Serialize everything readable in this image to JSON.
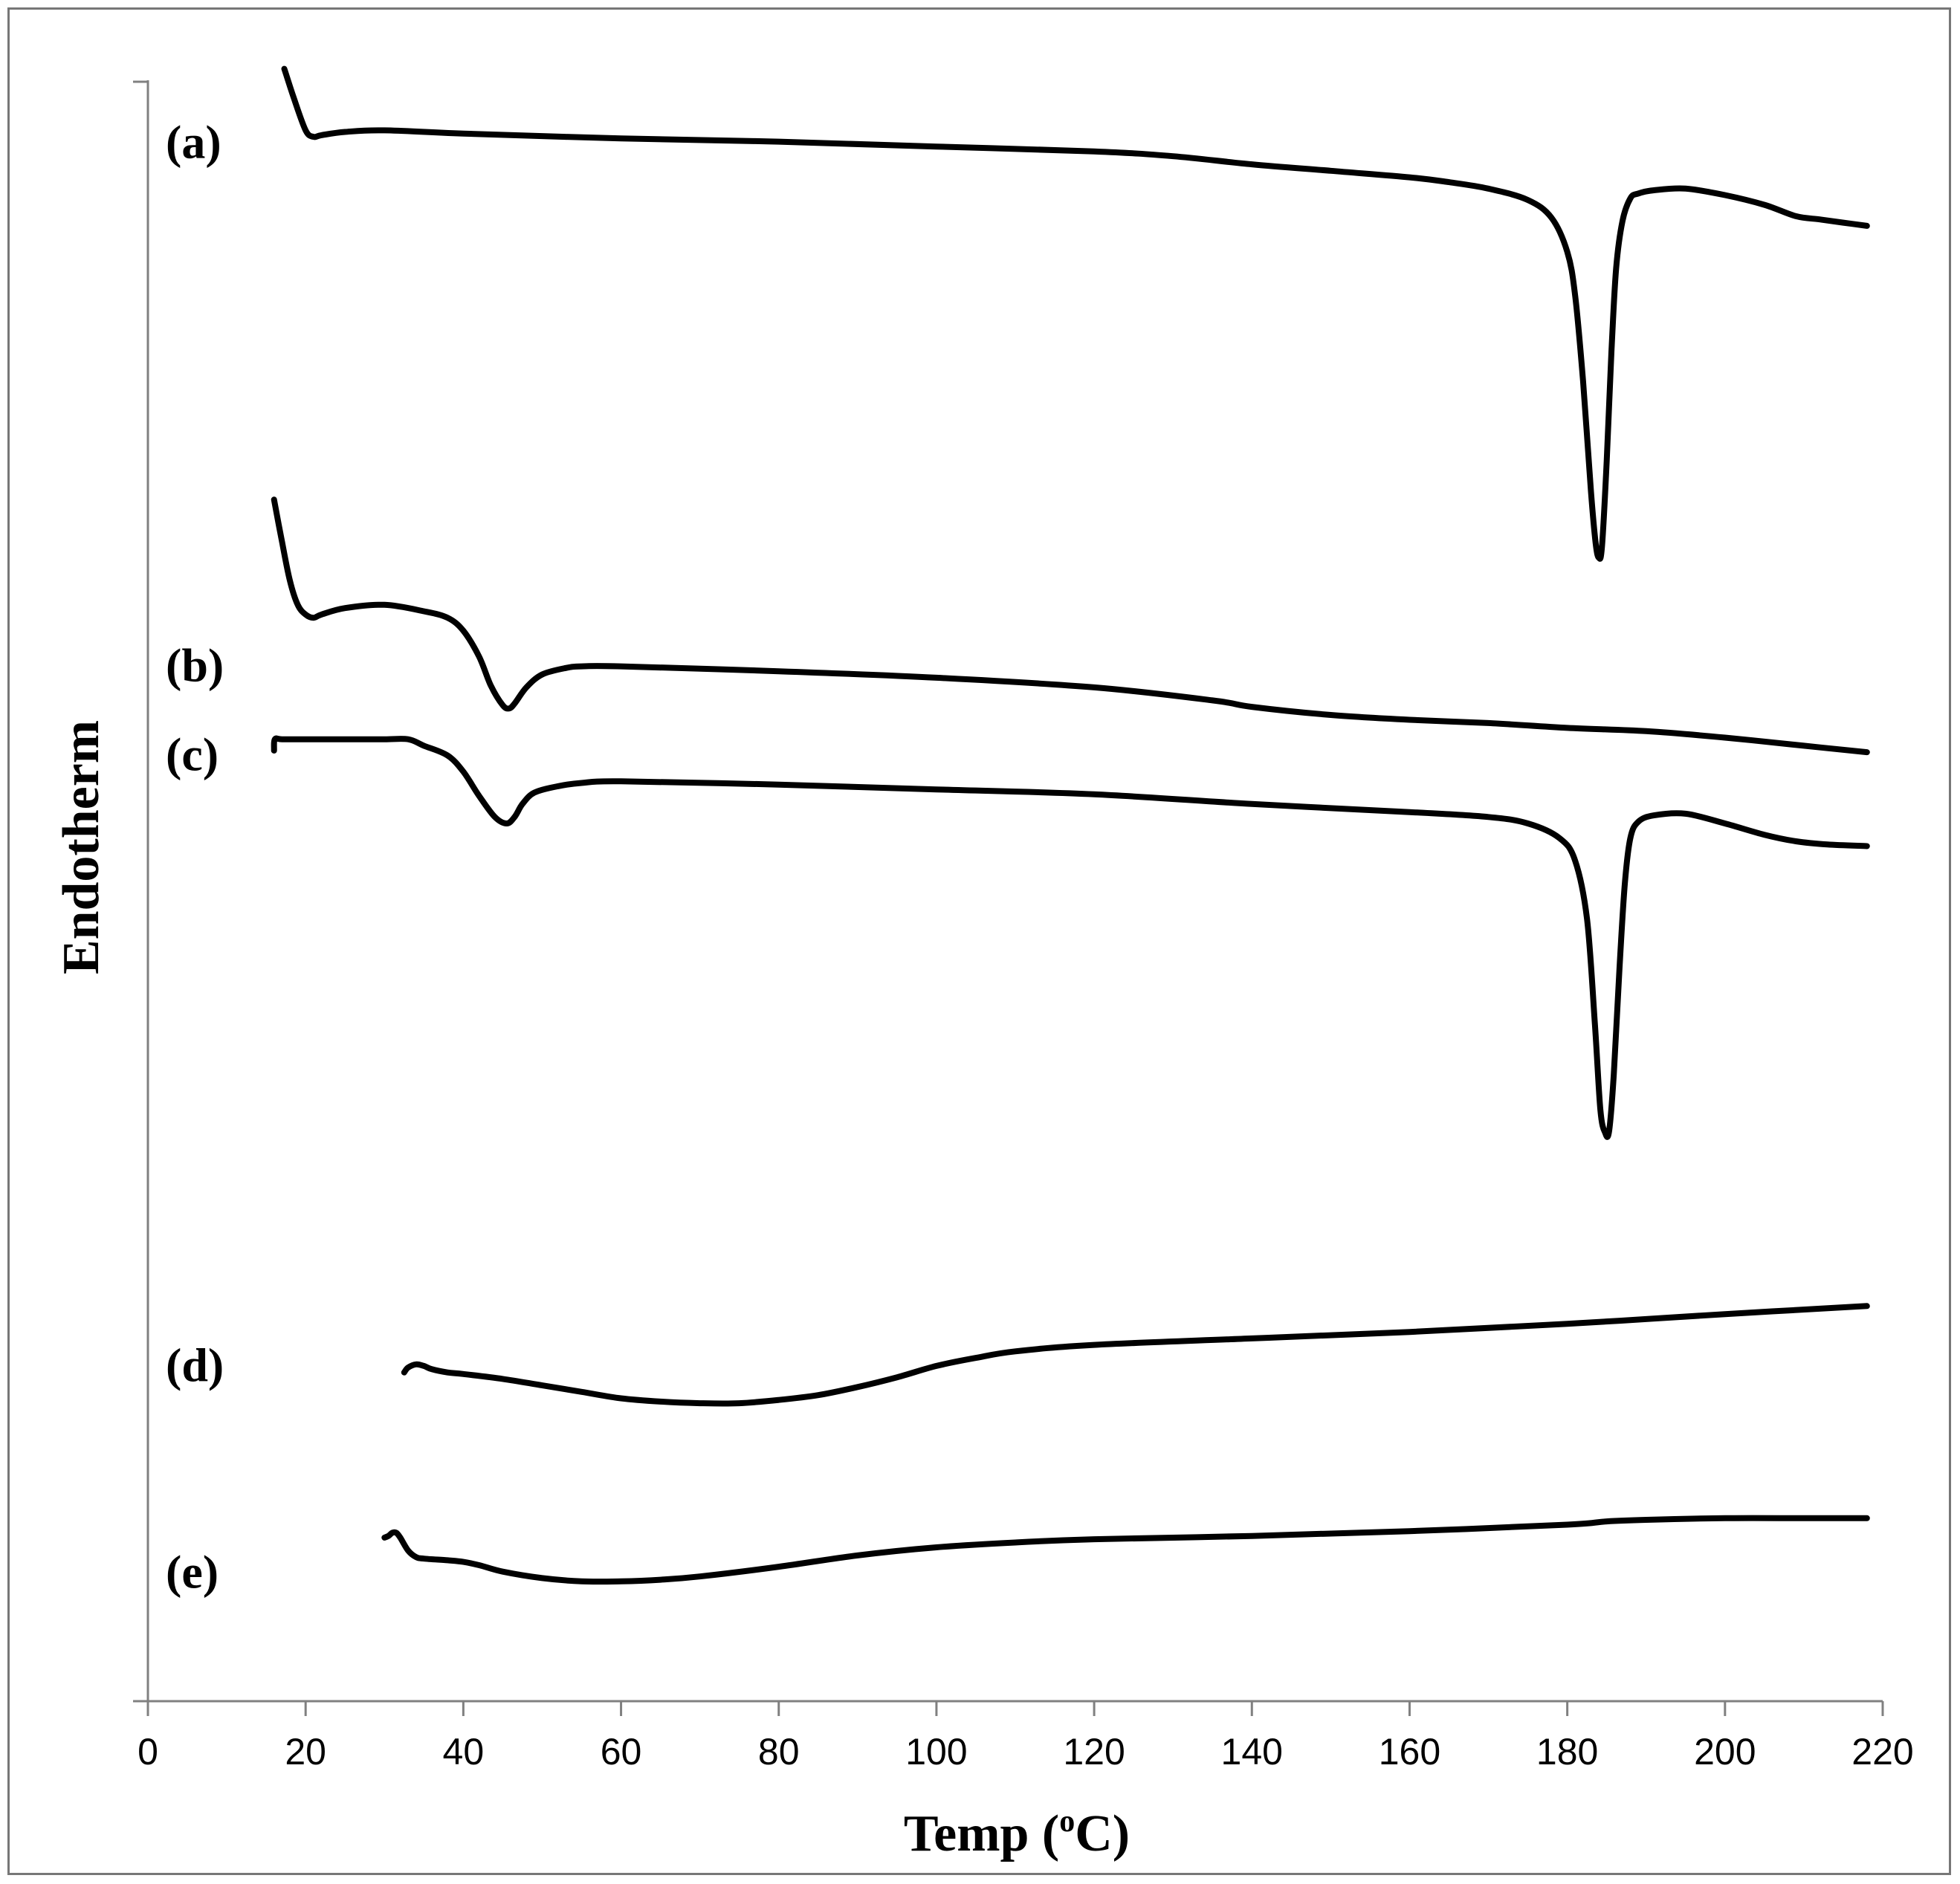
{
  "chart_data": {
    "type": "line",
    "title": "",
    "xlabel": "Temp (",
    "xlabel_sup": "o",
    "xlabel_end": "C)",
    "ylabel": "Endotherm",
    "xlim": [
      0,
      220
    ],
    "ylim": [
      0,
      100
    ],
    "x_ticks": [
      0,
      20,
      40,
      60,
      80,
      100,
      120,
      140,
      160,
      180,
      200,
      220
    ],
    "x_tick_labels": [
      "0",
      "20",
      "40",
      "60",
      "80",
      "100",
      "120",
      "140",
      "160",
      "180",
      "200",
      "220"
    ],
    "grid": false,
    "legend": "none",
    "series": [
      {
        "name": "(a)",
        "x": [
          17.3,
          18.5,
          20,
          21,
          22,
          25,
          30,
          40,
          60,
          80,
          100,
          120,
          130,
          140,
          150,
          160,
          165,
          170,
          175,
          178,
          180,
          181,
          182,
          183,
          183.6,
          184,
          184.4,
          185,
          185.6,
          186.2,
          187,
          188,
          189,
          191,
          195,
          200,
          205,
          209,
          212,
          215,
          218
        ],
        "y": [
          100.8,
          99.0,
          97.0,
          96.6,
          96.7,
          96.9,
          97.0,
          96.8,
          96.5,
          96.3,
          96.0,
          95.7,
          95.4,
          94.9,
          94.5,
          94.1,
          93.8,
          93.4,
          92.7,
          91.6,
          89.5,
          86.8,
          81.5,
          74.7,
          71.5,
          70.6,
          71.3,
          76.6,
          83.3,
          88.5,
          91.4,
          92.8,
          93.1,
          93.3,
          93.4,
          93.0,
          92.4,
          91.7,
          91.5,
          91.3,
          91.1
        ]
      },
      {
        "name": "(b)",
        "x": [
          16,
          17,
          18,
          19,
          20,
          21,
          22,
          25,
          30,
          35,
          38,
          40,
          42,
          43.5,
          45,
          45.8,
          46.5,
          48,
          50,
          53,
          55,
          60,
          80,
          100,
          120,
          135,
          140,
          150,
          160,
          170,
          180,
          190,
          200,
          210,
          218
        ],
        "y": [
          74.2,
          71.6,
          69.2,
          67.7,
          67.1,
          66.9,
          67.1,
          67.5,
          67.7,
          67.3,
          66.9,
          66.1,
          64.5,
          62.7,
          61.5,
          61.3,
          61.6,
          62.6,
          63.4,
          63.8,
          63.9,
          63.9,
          63.6,
          63.2,
          62.6,
          61.8,
          61.4,
          60.9,
          60.6,
          60.4,
          60.1,
          59.9,
          59.5,
          59.0,
          58.6
        ]
      },
      {
        "name": "(c)",
        "x": [
          16,
          16.1,
          17,
          20,
          25,
          30,
          33,
          35,
          38,
          40,
          42,
          44,
          45.5,
          46.5,
          47.5,
          49,
          52,
          55,
          60,
          80,
          100,
          120,
          140,
          160,
          170,
          175,
          179,
          181,
          182.5,
          183.5,
          184.2,
          184.8,
          185.3,
          185.9,
          186.6,
          187.3,
          188,
          189,
          191,
          195,
          200,
          205,
          209,
          213,
          218
        ],
        "y": [
          58.7,
          59.4,
          59.4,
          59.4,
          59.4,
          59.4,
          59.4,
          59.0,
          58.4,
          57.4,
          55.9,
          54.6,
          54.2,
          54.6,
          55.4,
          56.1,
          56.5,
          56.7,
          56.8,
          56.6,
          56.3,
          56.0,
          55.4,
          54.9,
          54.6,
          54.2,
          53.3,
          51.9,
          48.3,
          41.8,
          36.5,
          35.1,
          35.2,
          38.7,
          45.1,
          50.5,
          53.3,
          54.3,
          54.7,
          54.8,
          54.2,
          53.5,
          53.1,
          52.9,
          52.8
        ]
      },
      {
        "name": "(d)",
        "x": [
          32.5,
          33,
          34,
          35,
          36,
          38,
          40,
          45,
          50,
          55,
          60,
          65,
          70,
          75,
          80,
          85,
          90,
          95,
          100,
          105,
          110,
          120,
          140,
          160,
          180,
          200,
          218
        ],
        "y": [
          20.3,
          20.6,
          20.8,
          20.7,
          20.5,
          20.3,
          20.2,
          19.9,
          19.5,
          19.1,
          18.7,
          18.5,
          18.4,
          18.4,
          18.6,
          18.9,
          19.4,
          20.0,
          20.7,
          21.2,
          21.6,
          22.0,
          22.4,
          22.8,
          23.3,
          23.9,
          24.4
        ]
      },
      {
        "name": "(e)",
        "x": [
          30,
          30.5,
          31,
          31.5,
          32,
          33,
          34,
          35,
          38,
          40,
          42,
          45,
          50,
          55,
          60,
          65,
          70,
          80,
          90,
          100,
          110,
          120,
          140,
          160,
          180,
          185,
          190,
          200,
          210,
          218
        ],
        "y": [
          10.1,
          10.2,
          10.4,
          10.4,
          10.1,
          9.3,
          8.9,
          8.8,
          8.7,
          8.6,
          8.4,
          8.0,
          7.6,
          7.4,
          7.4,
          7.5,
          7.7,
          8.3,
          9.0,
          9.5,
          9.8,
          10.0,
          10.2,
          10.5,
          10.9,
          11.1,
          11.2,
          11.3,
          11.3,
          11.3
        ]
      }
    ]
  }
}
